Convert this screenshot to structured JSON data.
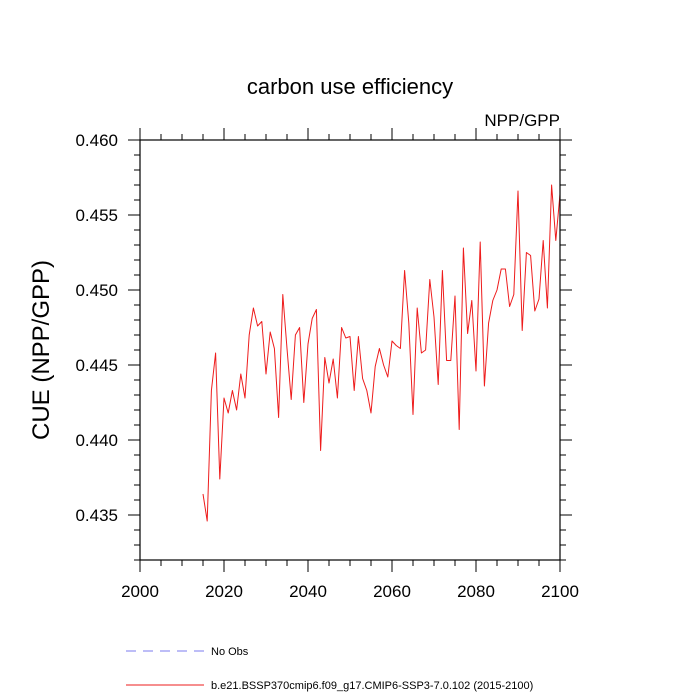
{
  "chart_data": {
    "type": "line",
    "title": "carbon use efficiency",
    "subtitle": "NPP/GPP",
    "xlabel": "",
    "ylabel": "CUE  (NPP/GPP)",
    "xlim": [
      2000,
      2100
    ],
    "ylim": [
      0.432,
      0.46
    ],
    "x_ticks": [
      2000,
      2020,
      2040,
      2060,
      2080,
      2100
    ],
    "y_ticks": [
      0.435,
      0.44,
      0.445,
      0.45,
      0.455,
      0.46
    ],
    "x_tick_labels": [
      "2000",
      "2020",
      "2040",
      "2060",
      "2080",
      "2100"
    ],
    "y_tick_labels": [
      "0.435",
      "0.440",
      "0.445",
      "0.450",
      "0.455",
      "0.460"
    ],
    "grid": false,
    "legend_position": "bottom",
    "legend": [
      {
        "label": "No Obs",
        "color": "#7b7bef",
        "style": "dashed"
      },
      {
        "label": "b.e21.BSSP370cmip6.f09_g17.CMIP6-SSP3-7.0.102 (2015-2100)",
        "color": "#ee1c1c",
        "style": "solid"
      }
    ],
    "series": [
      {
        "name": "b.e21.BSSP370cmip6.f09_g17.CMIP6-SSP3-7.0.102 (2015-2100)",
        "color": "#ee1c1c",
        "x": [
          2015,
          2016,
          2017,
          2018,
          2019,
          2020,
          2021,
          2022,
          2023,
          2024,
          2025,
          2026,
          2027,
          2028,
          2029,
          2030,
          2031,
          2032,
          2033,
          2034,
          2035,
          2036,
          2037,
          2038,
          2039,
          2040,
          2041,
          2042,
          2043,
          2044,
          2045,
          2046,
          2047,
          2048,
          2049,
          2050,
          2051,
          2052,
          2053,
          2054,
          2055,
          2056,
          2057,
          2058,
          2059,
          2060,
          2061,
          2062,
          2063,
          2064,
          2065,
          2066,
          2067,
          2068,
          2069,
          2070,
          2071,
          2072,
          2073,
          2074,
          2075,
          2076,
          2077,
          2078,
          2079,
          2080,
          2081,
          2082,
          2083,
          2084,
          2085,
          2086,
          2087,
          2088,
          2089,
          2090,
          2091,
          2092,
          2093,
          2094,
          2095,
          2096,
          2097,
          2098,
          2099,
          2100
        ],
        "y": [
          0.4364,
          0.4346,
          0.4433,
          0.4458,
          0.4374,
          0.4428,
          0.4418,
          0.4433,
          0.442,
          0.4444,
          0.4428,
          0.447,
          0.4488,
          0.4476,
          0.4479,
          0.4444,
          0.4472,
          0.4461,
          0.4415,
          0.4497,
          0.4461,
          0.4427,
          0.447,
          0.4475,
          0.4425,
          0.4464,
          0.4481,
          0.4487,
          0.4393,
          0.4455,
          0.4438,
          0.4454,
          0.4428,
          0.4475,
          0.4468,
          0.4469,
          0.4433,
          0.4469,
          0.4441,
          0.4433,
          0.4418,
          0.4449,
          0.4461,
          0.445,
          0.4442,
          0.4466,
          0.4463,
          0.4461,
          0.4513,
          0.4478,
          0.4417,
          0.4488,
          0.4458,
          0.446,
          0.4507,
          0.4482,
          0.4437,
          0.4513,
          0.4453,
          0.4453,
          0.4496,
          0.4407,
          0.4528,
          0.4471,
          0.4493,
          0.4446,
          0.4532,
          0.4436,
          0.4478,
          0.4493,
          0.45,
          0.4514,
          0.4514,
          0.4489,
          0.4497,
          0.4566,
          0.4473,
          0.4525,
          0.4523,
          0.4486,
          0.4494,
          0.4533,
          0.4488,
          0.457,
          0.4533,
          0.4564
        ]
      }
    ]
  }
}
